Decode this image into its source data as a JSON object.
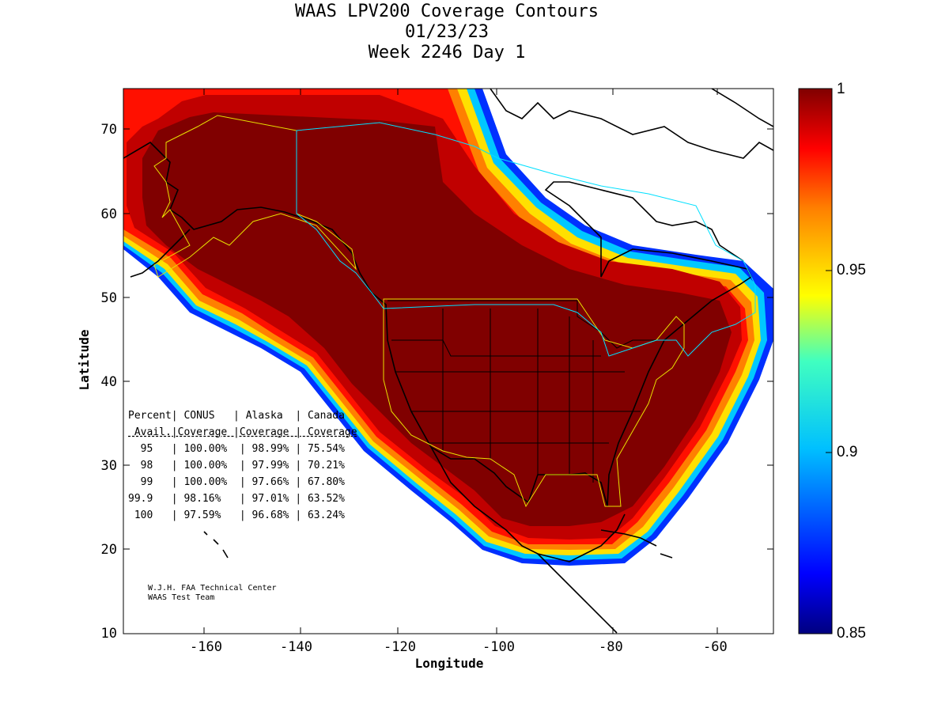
{
  "title": {
    "line1": "WAAS LPV200 Coverage Contours",
    "line2": "01/23/23",
    "line3": "Week 2246 Day 1"
  },
  "axes": {
    "xlabel": "Longitude",
    "ylabel": "Latitude",
    "xticks": [
      "-160",
      "-140",
      "-120",
      "-100",
      "-80",
      "-60"
    ],
    "yticks": [
      "70",
      "60",
      "50",
      "40",
      "30",
      "20",
      "10"
    ],
    "xlim": [
      -174,
      -50
    ],
    "ylim": [
      10,
      75
    ]
  },
  "colorbar": {
    "ticks": [
      "1",
      "0.95",
      "0.9",
      "0.85"
    ],
    "range": [
      0.85,
      1.0
    ],
    "colormap": "jet"
  },
  "stats_table": {
    "header1": "Percent| CONUS   | Alaska  | Canada",
    "header2": " Avail.|Coverage |Coverage | Coverage",
    "rows": [
      "  95   | 100.00%  | 98.99% | 75.54%",
      "  98   | 100.00%  | 97.99% | 70.21%",
      "  99   | 100.00%  | 97.66% | 67.80%",
      "99.9   | 98.16%   | 97.01% | 63.52%",
      " 100   | 97.59%   | 96.68% | 63.24%"
    ]
  },
  "credits": {
    "line1": "W.J.H. FAA Technical Center",
    "line2": "WAAS Test Team"
  },
  "colors": {
    "full_coverage": "#800000",
    "high": "#c00000",
    "mid_red": "#ff2000",
    "orange": "#ff8000",
    "yellow": "#ffe000",
    "cyan": "#00c0ff",
    "blue": "#0040ff",
    "dark_blue": "#000080",
    "boundary_yellow": "#e8e000",
    "boundary_cyan": "#00e0ff"
  }
}
